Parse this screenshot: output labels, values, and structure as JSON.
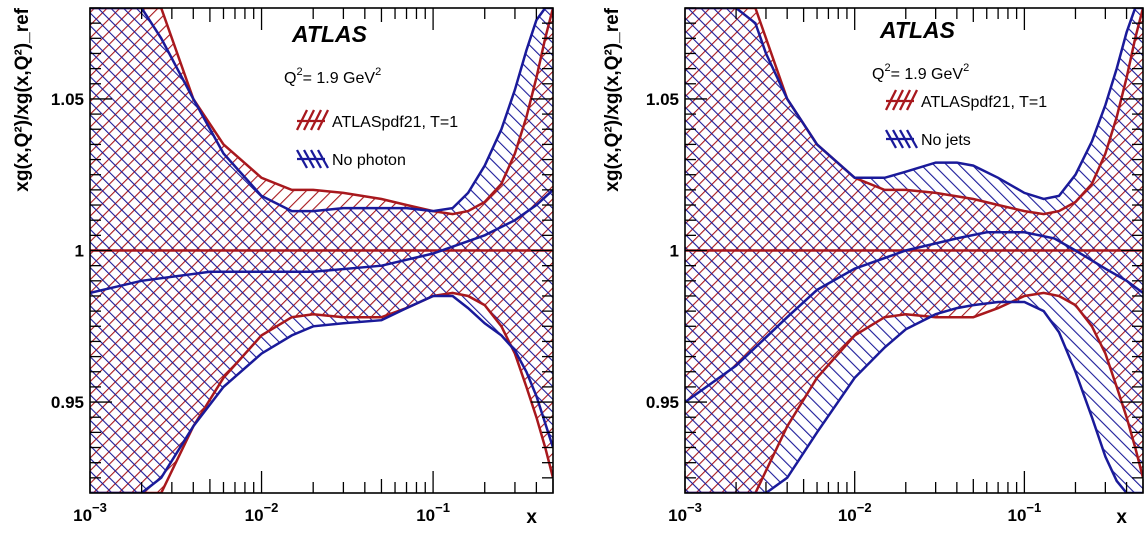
{
  "colors": {
    "red": "#a8181d",
    "blue": "#1a1a9a"
  },
  "chart_data": [
    {
      "type": "area",
      "title": "",
      "experiment_label": "ATLAS",
      "annotation_q2": "Q",
      "annotation_q2_sup": "2",
      "annotation_q2_rest": "= 1.9 GeV",
      "annotation_q2_unit_sup": "2",
      "xlabel": "x",
      "ylabel": "xg(x,Q²)/xg(x,Q²)_ref",
      "xscale": "log",
      "xlim": [
        0.001,
        0.5
      ],
      "ylim": [
        0.92,
        1.08
      ],
      "xtick_labels": [
        {
          "base": "10",
          "exp": "−3",
          "value": 0.001
        },
        {
          "base": "10",
          "exp": "−2",
          "value": 0.01
        },
        {
          "base": "10",
          "exp": "−1",
          "value": 0.1
        }
      ],
      "ytick_labels": [
        {
          "label": "0.95",
          "value": 0.95
        },
        {
          "label": "1",
          "value": 1.0
        },
        {
          "label": "1.05",
          "value": 1.05
        }
      ],
      "legend_position": "top-right",
      "series": [
        {
          "name": "ATLASpdf21, T=1",
          "color": "red",
          "x": [
            0.001,
            0.0015,
            0.002,
            0.0026,
            0.004,
            0.006,
            0.01,
            0.015,
            0.02,
            0.03,
            0.05,
            0.07,
            0.1,
            0.13,
            0.16,
            0.2,
            0.25,
            0.3,
            0.35,
            0.4,
            0.45,
            0.5
          ],
          "upper": [
            1.08,
            1.08,
            1.08,
            1.08,
            1.05,
            1.035,
            1.024,
            1.02,
            1.02,
            1.019,
            1.017,
            1.015,
            1.013,
            1.012,
            1.013,
            1.016,
            1.022,
            1.032,
            1.044,
            1.057,
            1.07,
            1.08
          ],
          "lower": [
            0.92,
            0.92,
            0.92,
            0.92,
            0.942,
            0.958,
            0.972,
            0.978,
            0.979,
            0.978,
            0.978,
            0.981,
            0.985,
            0.986,
            0.985,
            0.982,
            0.975,
            0.966,
            0.955,
            0.945,
            0.935,
            0.925
          ],
          "central": 1.0
        },
        {
          "name": "No photon",
          "color": "blue",
          "x": [
            0.001,
            0.0015,
            0.002,
            0.0026,
            0.004,
            0.006,
            0.01,
            0.015,
            0.02,
            0.03,
            0.05,
            0.07,
            0.1,
            0.13,
            0.16,
            0.2,
            0.25,
            0.3,
            0.35,
            0.4,
            0.45,
            0.5
          ],
          "upper": [
            1.08,
            1.08,
            1.08,
            1.07,
            1.05,
            1.032,
            1.018,
            1.013,
            1.013,
            1.014,
            1.014,
            1.014,
            1.013,
            1.014,
            1.019,
            1.028,
            1.04,
            1.053,
            1.066,
            1.076,
            1.08,
            1.08
          ],
          "lower": [
            0.92,
            0.92,
            0.92,
            0.925,
            0.942,
            0.955,
            0.966,
            0.972,
            0.975,
            0.976,
            0.977,
            0.981,
            0.985,
            0.985,
            0.981,
            0.976,
            0.972,
            0.967,
            0.96,
            0.952,
            0.943,
            0.935
          ],
          "central_x": [
            0.001,
            0.002,
            0.005,
            0.01,
            0.02,
            0.05,
            0.1,
            0.2,
            0.3,
            0.4,
            0.5
          ],
          "central_y": [
            0.986,
            0.99,
            0.993,
            0.993,
            0.993,
            0.995,
            0.999,
            1.005,
            1.01,
            1.015,
            1.02
          ]
        }
      ]
    },
    {
      "type": "area",
      "title": "",
      "experiment_label": "ATLAS",
      "annotation_q2": "Q",
      "annotation_q2_sup": "2",
      "annotation_q2_rest": "= 1.9 GeV",
      "annotation_q2_unit_sup": "2",
      "xlabel": "x",
      "ylabel": "xg(x,Q²)/xg(x,Q²)_ref",
      "xscale": "log",
      "xlim": [
        0.001,
        0.5
      ],
      "ylim": [
        0.92,
        1.08
      ],
      "xtick_labels": [
        {
          "base": "10",
          "exp": "−3",
          "value": 0.001
        },
        {
          "base": "10",
          "exp": "−2",
          "value": 0.01
        },
        {
          "base": "10",
          "exp": "−1",
          "value": 0.1
        }
      ],
      "ytick_labels": [
        {
          "label": "0.95",
          "value": 0.95
        },
        {
          "label": "1",
          "value": 1.0
        },
        {
          "label": "1.05",
          "value": 1.05
        }
      ],
      "legend_position": "top-right",
      "series": [
        {
          "name": "ATLASpdf21, T=1",
          "color": "red",
          "x": [
            0.001,
            0.0015,
            0.002,
            0.0026,
            0.004,
            0.006,
            0.01,
            0.015,
            0.02,
            0.03,
            0.05,
            0.07,
            0.1,
            0.13,
            0.16,
            0.2,
            0.25,
            0.3,
            0.35,
            0.4,
            0.45,
            0.5
          ],
          "upper": [
            1.08,
            1.08,
            1.08,
            1.08,
            1.05,
            1.035,
            1.024,
            1.02,
            1.02,
            1.019,
            1.017,
            1.015,
            1.013,
            1.012,
            1.013,
            1.016,
            1.022,
            1.032,
            1.044,
            1.057,
            1.07,
            1.08
          ],
          "lower": [
            0.92,
            0.92,
            0.92,
            0.92,
            0.942,
            0.958,
            0.972,
            0.978,
            0.979,
            0.978,
            0.978,
            0.981,
            0.985,
            0.986,
            0.985,
            0.982,
            0.975,
            0.966,
            0.955,
            0.945,
            0.935,
            0.925
          ],
          "central": 1.0
        },
        {
          "name": "No jets",
          "color": "blue",
          "x": [
            0.001,
            0.0015,
            0.002,
            0.0026,
            0.003,
            0.004,
            0.006,
            0.01,
            0.015,
            0.02,
            0.03,
            0.04,
            0.05,
            0.07,
            0.1,
            0.13,
            0.16,
            0.2,
            0.25,
            0.3,
            0.35,
            0.4,
            0.45,
            0.5
          ],
          "upper": [
            1.08,
            1.08,
            1.08,
            1.075,
            1.065,
            1.05,
            1.035,
            1.024,
            1.024,
            1.026,
            1.029,
            1.029,
            1.028,
            1.024,
            1.019,
            1.017,
            1.018,
            1.025,
            1.036,
            1.048,
            1.06,
            1.072,
            1.08,
            1.08
          ],
          "lower": [
            0.92,
            0.92,
            0.92,
            0.92,
            0.92,
            0.925,
            0.94,
            0.958,
            0.968,
            0.974,
            0.979,
            0.981,
            0.982,
            0.983,
            0.983,
            0.98,
            0.973,
            0.96,
            0.945,
            0.932,
            0.924,
            0.92,
            0.92,
            0.92
          ],
          "central_x": [
            0.001,
            0.002,
            0.004,
            0.006,
            0.01,
            0.02,
            0.04,
            0.06,
            0.1,
            0.15,
            0.2,
            0.3,
            0.4,
            0.5
          ],
          "central_y": [
            0.95,
            0.962,
            0.978,
            0.987,
            0.994,
            1.0,
            1.004,
            1.006,
            1.006,
            1.004,
            1.0,
            0.994,
            0.99,
            0.986
          ]
        }
      ]
    }
  ]
}
